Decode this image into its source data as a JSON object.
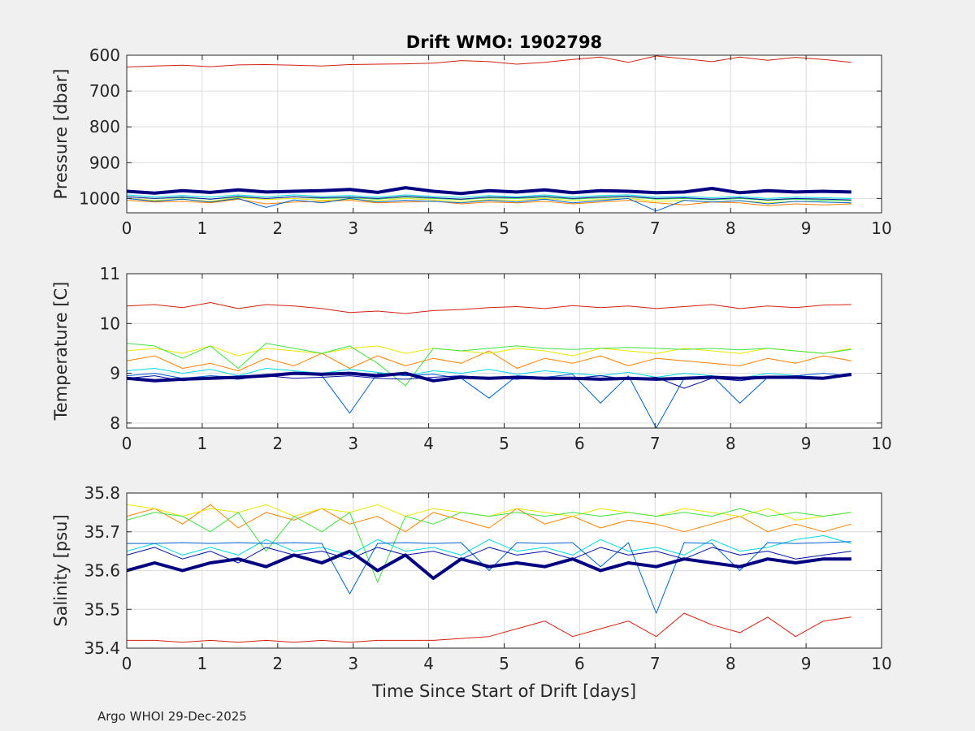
{
  "footer": {
    "credit": "Argo WHOI 29-Dec-2025"
  },
  "chart_data": [
    {
      "type": "line",
      "title": "Drift WMO: 1902798",
      "xlabel": "",
      "ylabel": "Pressure [dbar]",
      "xlim": [
        0,
        10
      ],
      "ylim": [
        600,
        1040
      ],
      "y_reversed": true,
      "xticks": [
        0,
        1,
        2,
        3,
        4,
        5,
        6,
        7,
        8,
        9,
        10
      ],
      "yticks": [
        600,
        700,
        800,
        900,
        1000
      ],
      "grid": true,
      "x_end": 9.6,
      "series": [
        {
          "color": "#d02010",
          "values": [
            633,
            630,
            628,
            632,
            627,
            626,
            628,
            630,
            626,
            625,
            624,
            622,
            615,
            618,
            625,
            620,
            612,
            605,
            620,
            602,
            610,
            618,
            605,
            614,
            606,
            612,
            620
          ],
          "width": 1
        },
        {
          "color": "#ff8000",
          "values": [
            1005,
            1010,
            1008,
            1012,
            1002,
            1015,
            1010,
            1008,
            1005,
            1012,
            1010,
            1007,
            1015,
            1010,
            1012,
            1008,
            1015,
            1010,
            1005,
            1012,
            1018,
            1010,
            1012,
            1020,
            1015,
            1018,
            1015
          ],
          "width": 1
        },
        {
          "color": "#e8e800",
          "values": [
            1000,
            1005,
            1002,
            1008,
            998,
            1003,
            1000,
            1005,
            1002,
            1006,
            1000,
            1004,
            1008,
            1003,
            1005,
            1000,
            1006,
            1003,
            1000,
            1008,
            1005,
            1010,
            1006,
            1012,
            1008,
            1010,
            1012
          ],
          "width": 1
        },
        {
          "color": "#40e040",
          "values": [
            995,
            1000,
            998,
            1002,
            996,
            1000,
            995,
            1000,
            998,
            1002,
            996,
            1000,
            1003,
            998,
            1000,
            996,
            1002,
            998,
            995,
            1002,
            1000,
            1004,
            1000,
            1005,
            1002,
            1005,
            1006
          ],
          "width": 1
        },
        {
          "color": "#00d8e0",
          "values": [
            990,
            995,
            992,
            996,
            990,
            995,
            990,
            994,
            992,
            996,
            990,
            994,
            997,
            992,
            995,
            990,
            996,
            992,
            990,
            996,
            994,
            998,
            994,
            1000,
            996,
            998,
            1000
          ],
          "width": 1
        },
        {
          "color": "#0060d0",
          "values": [
            1000,
            1008,
            1002,
            1010,
            1000,
            1025,
            1004,
            1012,
            1000,
            1010,
            1005,
            1008,
            1012,
            1005,
            1010,
            1002,
            1012,
            1006,
            1000,
            1035,
            1005,
            1010,
            1006,
            1015,
            1008,
            1010,
            1012
          ],
          "width": 1
        },
        {
          "color": "#0010a0",
          "values": [
            995,
            1000,
            996,
            1002,
            994,
            1000,
            995,
            998,
            996,
            1000,
            994,
            998,
            1002,
            996,
            998,
            994,
            1000,
            996,
            994,
            1000,
            998,
            1002,
            998,
            1004,
            1000,
            1002,
            1004
          ],
          "width": 1
        },
        {
          "color": "#000080",
          "values": [
            980,
            985,
            978,
            983,
            976,
            982,
            980,
            978,
            975,
            983,
            970,
            980,
            986,
            978,
            982,
            976,
            984,
            978,
            980,
            984,
            982,
            972,
            984,
            978,
            982,
            980,
            982
          ],
          "width": 4
        }
      ]
    },
    {
      "type": "line",
      "title": "",
      "xlabel": "",
      "ylabel": "Temperature [C]",
      "xlim": [
        0,
        10
      ],
      "ylim": [
        7.9,
        11
      ],
      "xticks": [
        0,
        1,
        2,
        3,
        4,
        5,
        6,
        7,
        8,
        9,
        10
      ],
      "yticks": [
        8,
        9,
        10,
        11
      ],
      "grid": true,
      "x_end": 9.6,
      "series": [
        {
          "color": "#d02010",
          "values": [
            10.35,
            10.38,
            10.32,
            10.42,
            10.3,
            10.38,
            10.35,
            10.3,
            10.22,
            10.25,
            10.2,
            10.26,
            10.28,
            10.32,
            10.34,
            10.3,
            10.36,
            10.32,
            10.35,
            10.3,
            10.34,
            10.38,
            10.3,
            10.35,
            10.32,
            10.37,
            10.38
          ],
          "width": 1
        },
        {
          "color": "#ff8000",
          "values": [
            9.25,
            9.35,
            9.1,
            9.2,
            9.05,
            9.3,
            9.15,
            9.4,
            9.1,
            9.35,
            9.15,
            9.3,
            9.2,
            9.45,
            9.1,
            9.3,
            9.2,
            9.35,
            9.15,
            9.3,
            9.25,
            9.2,
            9.15,
            9.3,
            9.2,
            9.35,
            9.25
          ],
          "width": 1
        },
        {
          "color": "#e8e800",
          "values": [
            9.45,
            9.5,
            9.4,
            9.55,
            9.35,
            9.5,
            9.45,
            9.4,
            9.5,
            9.55,
            9.4,
            9.5,
            9.45,
            9.4,
            9.5,
            9.45,
            9.35,
            9.5,
            9.45,
            9.4,
            9.5,
            9.45,
            9.4,
            9.5,
            9.45,
            9.4,
            9.5
          ],
          "width": 1
        },
        {
          "color": "#40e040",
          "values": [
            9.6,
            9.55,
            9.3,
            9.55,
            9.1,
            9.6,
            9.5,
            9.4,
            9.55,
            9.2,
            8.75,
            9.5,
            9.45,
            9.5,
            9.55,
            9.5,
            9.48,
            9.5,
            9.52,
            9.5,
            9.48,
            9.5,
            9.47,
            9.5,
            9.45,
            9.4,
            9.48
          ],
          "width": 1
        },
        {
          "color": "#00d8e0",
          "values": [
            9.05,
            9.1,
            9.0,
            9.08,
            8.95,
            9.1,
            9.05,
            9.0,
            9.08,
            9.02,
            8.95,
            9.05,
            9.0,
            9.08,
            8.98,
            9.05,
            9.0,
            8.95,
            9.02,
            8.92,
            9.0,
            8.95,
            8.9,
            9.0,
            8.95,
            8.92,
            9.0
          ],
          "width": 1
        },
        {
          "color": "#0060d0",
          "values": [
            8.95,
            9.0,
            8.9,
            8.95,
            8.92,
            8.98,
            9.0,
            8.95,
            8.2,
            9.0,
            8.95,
            8.98,
            8.9,
            8.5,
            8.95,
            8.92,
            8.98,
            8.4,
            8.95,
            7.9,
            8.9,
            8.95,
            8.4,
            8.92,
            8.95,
            9.0,
            8.95
          ],
          "width": 1
        },
        {
          "color": "#0010a0",
          "values": [
            8.9,
            8.95,
            8.85,
            8.92,
            8.88,
            8.95,
            8.9,
            8.92,
            8.95,
            8.9,
            8.88,
            8.92,
            8.95,
            8.9,
            8.88,
            8.92,
            8.9,
            8.95,
            8.88,
            8.92,
            8.7,
            8.9,
            8.85,
            8.92,
            8.95,
            8.9,
            8.95
          ],
          "width": 1
        },
        {
          "color": "#000080",
          "values": [
            8.9,
            8.85,
            8.88,
            8.9,
            8.92,
            8.95,
            9.0,
            8.98,
            9.0,
            8.95,
            9.0,
            8.85,
            8.92,
            8.9,
            8.92,
            8.9,
            8.9,
            8.88,
            8.9,
            8.88,
            8.9,
            8.92,
            8.9,
            8.92,
            8.92,
            8.9,
            8.98
          ],
          "width": 4
        }
      ]
    },
    {
      "type": "line",
      "title": "",
      "xlabel": "Time Since Start of Drift [days]",
      "ylabel": "Salinity [psu]",
      "xlim": [
        0,
        10
      ],
      "ylim": [
        35.4,
        35.8
      ],
      "xticks": [
        0,
        1,
        2,
        3,
        4,
        5,
        6,
        7,
        8,
        9,
        10
      ],
      "yticks": [
        35.4,
        35.5,
        35.6,
        35.7,
        35.8
      ],
      "grid": true,
      "x_end": 9.6,
      "series": [
        {
          "color": "#d02010",
          "values": [
            35.42,
            35.42,
            35.415,
            35.42,
            35.415,
            35.42,
            35.415,
            35.42,
            35.415,
            35.42,
            35.42,
            35.42,
            35.425,
            35.43,
            35.45,
            35.47,
            35.43,
            35.45,
            35.47,
            35.43,
            35.49,
            35.46,
            35.44,
            35.48,
            35.43,
            35.47,
            35.48
          ],
          "width": 1
        },
        {
          "color": "#ff8000",
          "values": [
            35.74,
            35.76,
            35.72,
            35.77,
            35.71,
            35.75,
            35.73,
            35.76,
            35.72,
            35.74,
            35.7,
            35.75,
            35.73,
            35.71,
            35.76,
            35.72,
            35.74,
            35.71,
            35.73,
            35.72,
            35.7,
            35.72,
            35.74,
            35.7,
            35.72,
            35.7,
            35.72
          ],
          "width": 1
        },
        {
          "color": "#e8e800",
          "values": [
            35.77,
            35.76,
            35.74,
            35.76,
            35.75,
            35.77,
            35.74,
            35.76,
            35.75,
            35.77,
            35.74,
            35.76,
            35.75,
            35.74,
            35.76,
            35.75,
            35.74,
            35.76,
            35.75,
            35.74,
            35.76,
            35.75,
            35.74,
            35.76,
            35.73,
            35.74,
            35.75
          ],
          "width": 1
        },
        {
          "color": "#40e040",
          "values": [
            35.73,
            35.75,
            35.74,
            35.7,
            35.75,
            35.65,
            35.74,
            35.7,
            35.75,
            35.57,
            35.74,
            35.72,
            35.75,
            35.74,
            35.75,
            35.74,
            35.75,
            35.74,
            35.75,
            35.74,
            35.75,
            35.74,
            35.76,
            35.74,
            35.75,
            35.74,
            35.75
          ],
          "width": 1
        },
        {
          "color": "#00d8e0",
          "values": [
            35.65,
            35.67,
            35.64,
            35.66,
            35.64,
            35.68,
            35.65,
            35.66,
            35.64,
            35.68,
            35.65,
            35.66,
            35.64,
            35.68,
            35.65,
            35.66,
            35.64,
            35.68,
            35.65,
            35.66,
            35.64,
            35.68,
            35.65,
            35.66,
            35.68,
            35.69,
            35.67
          ],
          "width": 1
        },
        {
          "color": "#0060d0",
          "values": [
            35.67,
            35.67,
            35.672,
            35.67,
            35.672,
            35.67,
            35.672,
            35.67,
            35.54,
            35.67,
            35.672,
            35.67,
            35.672,
            35.6,
            35.672,
            35.67,
            35.672,
            35.61,
            35.672,
            35.49,
            35.672,
            35.67,
            35.6,
            35.672,
            35.67,
            35.672,
            35.675
          ],
          "width": 1
        },
        {
          "color": "#0010a0",
          "values": [
            35.64,
            35.66,
            35.63,
            35.65,
            35.62,
            35.66,
            35.64,
            35.65,
            35.63,
            35.66,
            35.64,
            35.65,
            35.63,
            35.66,
            35.64,
            35.65,
            35.63,
            35.66,
            35.64,
            35.65,
            35.63,
            35.66,
            35.64,
            35.65,
            35.63,
            35.64,
            35.65
          ],
          "width": 1
        },
        {
          "color": "#000080",
          "values": [
            35.6,
            35.62,
            35.6,
            35.62,
            35.63,
            35.61,
            35.64,
            35.62,
            35.65,
            35.6,
            35.64,
            35.58,
            35.63,
            35.61,
            35.62,
            35.61,
            35.63,
            35.6,
            35.62,
            35.61,
            35.63,
            35.62,
            35.61,
            35.63,
            35.62,
            35.63,
            35.63
          ],
          "width": 4
        }
      ]
    }
  ]
}
